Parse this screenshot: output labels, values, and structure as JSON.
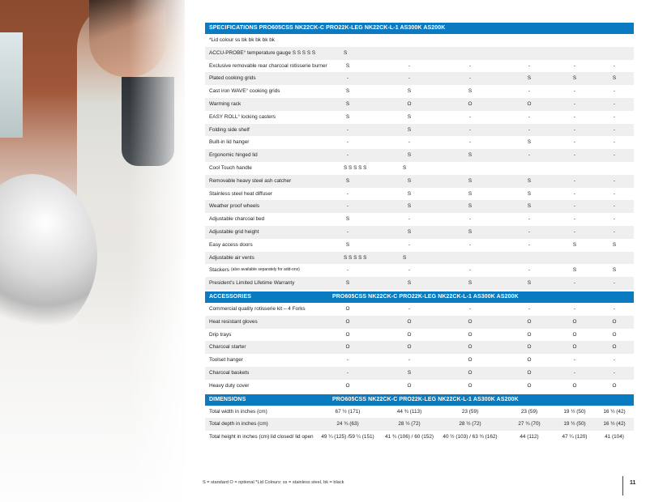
{
  "colors": {
    "header_bg": "#0b7bc1",
    "alt_row": "#efefef"
  },
  "specifications": {
    "header": "SPECIFICATIONS PRO605CSS NK22CK-C PRO22K-LEG NK22CK-L-1 AS300K AS200K",
    "rows": [
      {
        "label": "*Lid colour  ss bk bk bk bk bk",
        "values": []
      },
      {
        "label": "ACCU-PROBE° temperature gauge S S S S S",
        "values": [
          "S"
        ]
      },
      {
        "label": "Exclusive removable rear charcoal rotisserie burner",
        "values": [
          "S",
          "-",
          "-",
          "-",
          "-",
          "-"
        ]
      },
      {
        "label": "Plated cooking grids",
        "values": [
          "-",
          "-",
          "-",
          "S",
          "S",
          "S"
        ]
      },
      {
        "label": "Cast iron WAVE° cooking grids",
        "values": [
          "S",
          "S",
          "S",
          "-",
          "-",
          "-"
        ]
      },
      {
        "label": "Warming rack",
        "values": [
          "S",
          "O",
          "O",
          "O",
          "-",
          "-"
        ]
      },
      {
        "label": "EASY ROLL° locking casters",
        "values": [
          "S",
          "S",
          "-",
          "-",
          "-",
          "-"
        ]
      },
      {
        "label": "Folding side shelf",
        "values": [
          "-",
          "S",
          "-",
          "-",
          "-",
          "-"
        ]
      },
      {
        "label": "Built-in lid hanger",
        "values": [
          "-",
          "-",
          "-",
          "S",
          "-",
          "-"
        ]
      },
      {
        "label": "Ergonomic hinged lid",
        "values": [
          "-",
          "S",
          "S",
          "-",
          "-",
          "-"
        ]
      },
      {
        "label": "Cool Touch handle",
        "values": [
          "S S S S S",
          "S"
        ]
      },
      {
        "label": "Removable heavy steel ash catcher",
        "values": [
          "S",
          "S",
          "S",
          "S",
          "-",
          "-"
        ]
      },
      {
        "label": "Stainless steel heat diffuser",
        "values": [
          "-",
          "S",
          "S",
          "S",
          "-",
          "-"
        ]
      },
      {
        "label": "Weather proof wheels",
        "values": [
          "-",
          "S",
          "S",
          "S",
          "-",
          "-"
        ]
      },
      {
        "label": "Adjustable charcoal bed",
        "values": [
          "S",
          "-",
          "-",
          "-",
          "-",
          "-"
        ]
      },
      {
        "label": "Adjustable grid height",
        "values": [
          "-",
          "S",
          "S",
          "-",
          "-",
          "-"
        ]
      },
      {
        "label": "Easy access doors",
        "values": [
          "S",
          "-",
          "-",
          "-",
          "S",
          "S"
        ]
      },
      {
        "label": "Adjustable air vents",
        "values": [
          "S S S S S",
          "S"
        ]
      },
      {
        "label": "Stackers",
        "label_note": "(also available separately for add-ons)",
        "values": [
          "-",
          "-",
          "-",
          "-",
          "S",
          "S"
        ]
      },
      {
        "label": "President's Limited Lifetime Warranty",
        "values": [
          "S",
          "S",
          "S",
          "S",
          "-",
          "-"
        ]
      }
    ]
  },
  "accessories": {
    "header": "ACCESSORIES",
    "models": "PRO605CSS NK22CK-C PRO22K-LEG NK22CK-L-1 AS300K AS200K",
    "rows": [
      {
        "label": "Commercial quality rotisserie kit – 4 Forks",
        "values": [
          "O",
          "-",
          "-",
          "-",
          "-",
          "-"
        ]
      },
      {
        "label": "Heat resistant gloves",
        "values": [
          "O",
          "O",
          "O",
          "O",
          "O",
          "O"
        ]
      },
      {
        "label": "Drip trays",
        "values": [
          "O",
          "O",
          "O",
          "O",
          "O",
          "O"
        ]
      },
      {
        "label": "Charcoal starter",
        "values": [
          "O",
          "O",
          "O",
          "O",
          "O",
          "O"
        ]
      },
      {
        "label": "Toolset hanger",
        "values": [
          "-",
          "-",
          "O",
          "O",
          "-",
          "-"
        ]
      },
      {
        "label": "Charcoal baskets",
        "values": [
          "-",
          "S",
          "O",
          "O",
          "-",
          "-"
        ]
      },
      {
        "label": "Heavy duty cover",
        "values": [
          "O",
          "O",
          "O",
          "O",
          "O",
          "O"
        ]
      }
    ]
  },
  "dimensions": {
    "header": "DIMENSIONS",
    "models": "PRO605CSS NK22CK-C PRO22K-LEG NK22CK-L-1 AS300K AS200K",
    "rows": [
      {
        "label": "Total width in inches (cm)",
        "values": [
          "67 ½ (171)",
          "44 ¾ (113)",
          "23 (59)",
          "23 (59)",
          "19 ½ (50)",
          "16 ½ (42)"
        ]
      },
      {
        "label": "Total depth in inches (cm)",
        "values": [
          "24 ¾ (63)",
          "28 ½ (72)",
          "28 ½ (72)",
          "27 ¾ (70)",
          "19 ½ (50)",
          "16 ½ (42)"
        ]
      },
      {
        "label": "Total height in inches (cm) lid closed/ lid open",
        "values": [
          "49 ¼ (125) /59 ¼ (151)",
          "41 ¾ (106) / 60 (152)",
          "40 ½ (103) / 63 ¾ (162)",
          "44  (112)",
          "47 ¼ (120)",
          "41 (104)"
        ]
      }
    ]
  },
  "footer": {
    "legend": "S = standard O = optional   *Lid Colours: ss = stainless steel, bk = black",
    "page_number": "11"
  }
}
